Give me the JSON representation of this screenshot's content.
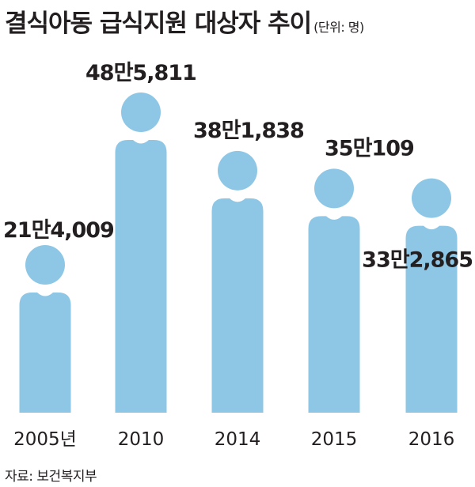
{
  "header": {
    "title": "결식아동 급식지원 대상자 추이",
    "unit": "(단위: 명)"
  },
  "source": "자료: 보건복지부",
  "colors": {
    "bar": "#8ec7e6",
    "text": "#231f20"
  },
  "chart_data": {
    "type": "bar",
    "categories": [
      "2005년",
      "2010",
      "2014",
      "2015",
      "2016"
    ],
    "values": [
      214009,
      485811,
      381838,
      350109,
      332865
    ],
    "value_labels": [
      "21만4,009",
      "48만5,811",
      "38만1,838",
      "35만109",
      "33만2,865"
    ],
    "title": "결식아동 급식지원 대상자 추이",
    "unit": "명",
    "xlabel": "",
    "ylabel": "",
    "ylim": [
      0,
      485811
    ],
    "grid": false,
    "legend": "none"
  }
}
